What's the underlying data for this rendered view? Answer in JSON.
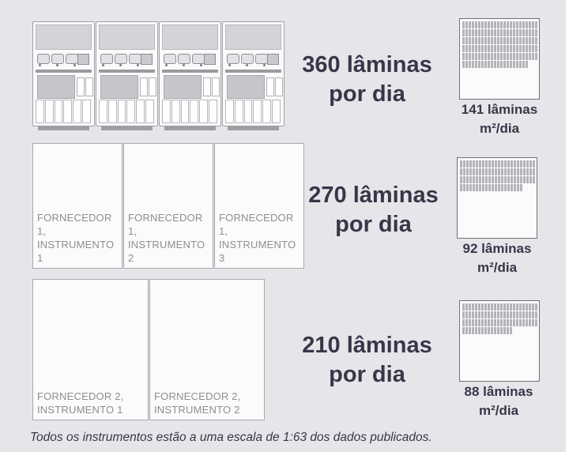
{
  "rows": [
    {
      "throughput": {
        "line1": "360 lâminas",
        "line2": "por dia"
      },
      "density": {
        "line1": "141 lâminas",
        "line2": "m²/dia",
        "value": 141
      }
    },
    {
      "throughput": {
        "line1": "270 lâminas",
        "line2": "por dia"
      },
      "density": {
        "line1": "92 lâminas",
        "line2": "m²/dia",
        "value": 92
      },
      "instruments": [
        {
          "label": "FORNECEDOR 1,\nINSTRUMENTO 1"
        },
        {
          "label": "FORNECEDOR 1,\nINSTRUMENTO 2"
        },
        {
          "label": "FORNECEDOR 1,\nINSTRUMENTO 3"
        }
      ]
    },
    {
      "throughput": {
        "line1": "210 lâminas",
        "line2": "por dia"
      },
      "density": {
        "line1": "88 lâminas",
        "line2": "m²/dia",
        "value": 88
      },
      "instruments": [
        {
          "label": "FORNECEDOR 2,\nINSTRUMENTO 1"
        },
        {
          "label": "FORNECEDOR 2,\nINSTRUMENTO 2"
        }
      ]
    }
  ],
  "footnote": "Todos os instrumentos estão a uma escala de 1:63 dos dados publicados."
}
